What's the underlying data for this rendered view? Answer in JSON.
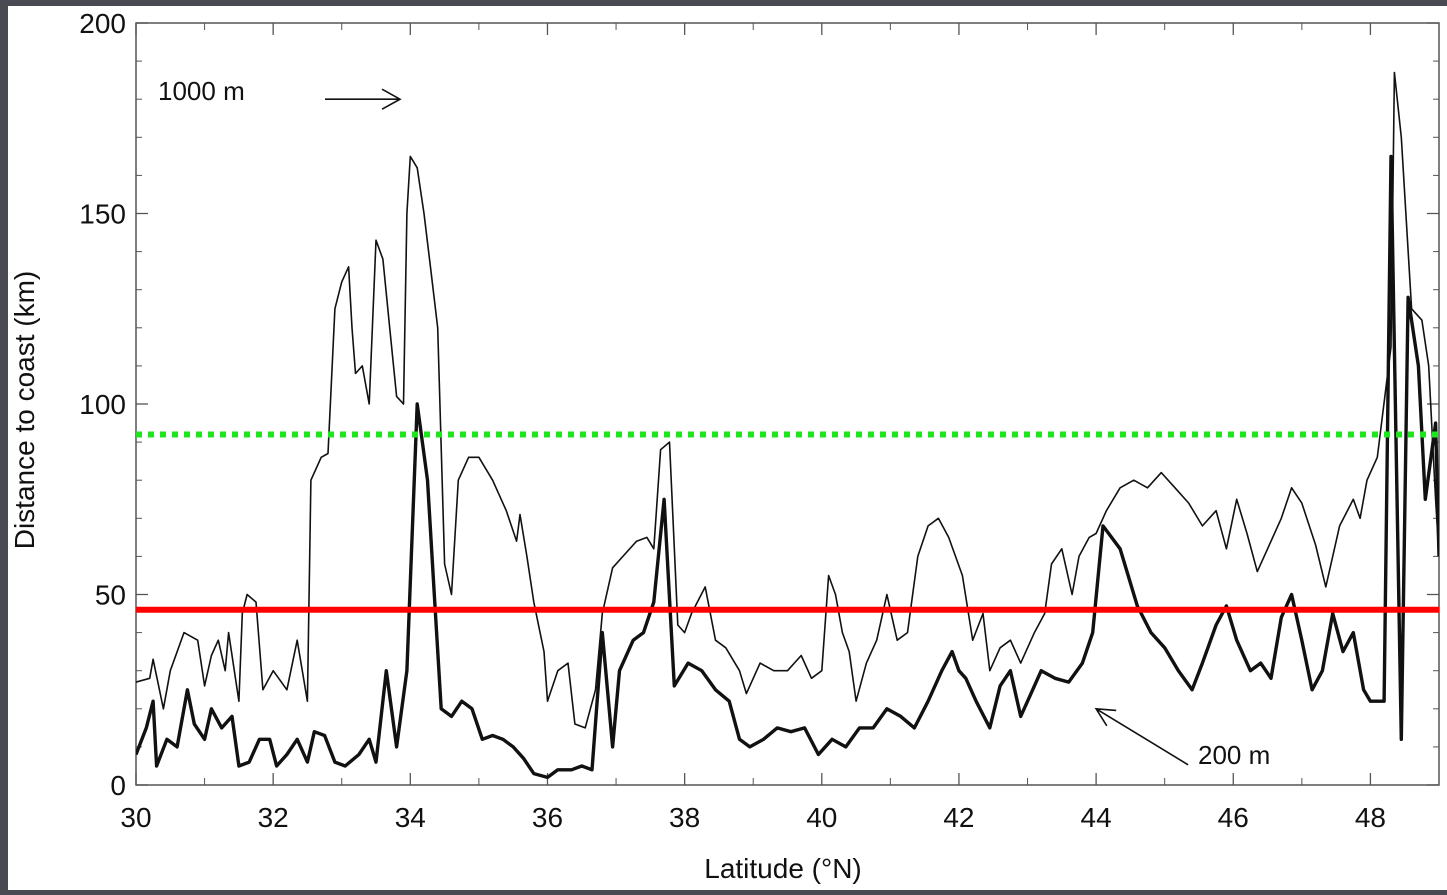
{
  "chart_data": {
    "type": "line",
    "xlabel": "Latitude (°N)",
    "ylabel": "Distance to coast (km)",
    "xlim": [
      30,
      49
    ],
    "ylim": [
      0,
      200
    ],
    "x_ticks": [
      "30",
      "32",
      "34",
      "36",
      "38",
      "40",
      "42",
      "44",
      "46",
      "48"
    ],
    "y_ticks": [
      "0",
      "50",
      "100",
      "150",
      "200"
    ],
    "grid": false,
    "annotations": [
      {
        "text": "1000 m",
        "arrow_tip": [
          33.85,
          180
        ]
      },
      {
        "text": "200 m",
        "arrow_tip": [
          44.0,
          20
        ]
      }
    ],
    "reference_lines": [
      {
        "y": 46,
        "color": "#ff0000",
        "style": "solid"
      },
      {
        "y": 92,
        "color": "#1ee61e",
        "style": "dotted"
      }
    ],
    "series": [
      {
        "name": "1000 m",
        "color": "#111111",
        "points": [
          [
            30.0,
            27
          ],
          [
            30.2,
            28
          ],
          [
            30.25,
            33
          ],
          [
            30.4,
            20
          ],
          [
            30.5,
            30
          ],
          [
            30.7,
            40
          ],
          [
            30.9,
            38
          ],
          [
            31.0,
            26
          ],
          [
            31.1,
            34
          ],
          [
            31.2,
            38
          ],
          [
            31.3,
            30
          ],
          [
            31.35,
            40
          ],
          [
            31.5,
            22
          ],
          [
            31.55,
            45
          ],
          [
            31.62,
            50
          ],
          [
            31.75,
            48
          ],
          [
            31.85,
            25
          ],
          [
            32.0,
            30
          ],
          [
            32.2,
            25
          ],
          [
            32.35,
            38
          ],
          [
            32.5,
            22
          ],
          [
            32.55,
            80
          ],
          [
            32.7,
            86
          ],
          [
            32.8,
            87
          ],
          [
            32.9,
            125
          ],
          [
            33.0,
            132
          ],
          [
            33.1,
            136
          ],
          [
            33.15,
            120
          ],
          [
            33.2,
            108
          ],
          [
            33.3,
            110
          ],
          [
            33.4,
            100
          ],
          [
            33.5,
            143
          ],
          [
            33.6,
            138
          ],
          [
            33.7,
            120
          ],
          [
            33.8,
            102
          ],
          [
            33.9,
            100
          ],
          [
            33.95,
            150
          ],
          [
            34.0,
            165
          ],
          [
            34.1,
            162
          ],
          [
            34.2,
            150
          ],
          [
            34.3,
            135
          ],
          [
            34.4,
            120
          ],
          [
            34.5,
            58
          ],
          [
            34.6,
            50
          ],
          [
            34.7,
            80
          ],
          [
            34.85,
            86
          ],
          [
            35.0,
            86
          ],
          [
            35.2,
            80
          ],
          [
            35.4,
            72
          ],
          [
            35.55,
            64
          ],
          [
            35.6,
            71
          ],
          [
            35.7,
            60
          ],
          [
            35.8,
            48
          ],
          [
            35.95,
            35
          ],
          [
            36.0,
            22
          ],
          [
            36.15,
            30
          ],
          [
            36.3,
            32
          ],
          [
            36.4,
            16
          ],
          [
            36.55,
            15
          ],
          [
            36.7,
            25
          ],
          [
            36.8,
            45
          ],
          [
            36.95,
            57
          ],
          [
            37.1,
            60
          ],
          [
            37.3,
            64
          ],
          [
            37.45,
            65
          ],
          [
            37.55,
            62
          ],
          [
            37.65,
            88
          ],
          [
            37.78,
            90
          ],
          [
            37.9,
            42
          ],
          [
            38.0,
            40
          ],
          [
            38.1,
            45
          ],
          [
            38.3,
            52
          ],
          [
            38.45,
            38
          ],
          [
            38.6,
            36
          ],
          [
            38.8,
            30
          ],
          [
            38.9,
            24
          ],
          [
            39.1,
            32
          ],
          [
            39.3,
            30
          ],
          [
            39.5,
            30
          ],
          [
            39.7,
            34
          ],
          [
            39.85,
            28
          ],
          [
            40.0,
            30
          ],
          [
            40.1,
            55
          ],
          [
            40.2,
            50
          ],
          [
            40.3,
            40
          ],
          [
            40.4,
            35
          ],
          [
            40.5,
            22
          ],
          [
            40.65,
            32
          ],
          [
            40.8,
            38
          ],
          [
            40.95,
            50
          ],
          [
            41.1,
            38
          ],
          [
            41.25,
            40
          ],
          [
            41.4,
            60
          ],
          [
            41.55,
            68
          ],
          [
            41.7,
            70
          ],
          [
            41.85,
            65
          ],
          [
            42.05,
            55
          ],
          [
            42.2,
            38
          ],
          [
            42.35,
            45
          ],
          [
            42.45,
            30
          ],
          [
            42.6,
            36
          ],
          [
            42.75,
            38
          ],
          [
            42.9,
            32
          ],
          [
            43.1,
            40
          ],
          [
            43.25,
            45
          ],
          [
            43.35,
            58
          ],
          [
            43.5,
            62
          ],
          [
            43.65,
            50
          ],
          [
            43.75,
            60
          ],
          [
            43.9,
            65
          ],
          [
            44.0,
            66
          ],
          [
            44.15,
            72
          ],
          [
            44.35,
            78
          ],
          [
            44.55,
            80
          ],
          [
            44.75,
            78
          ],
          [
            44.95,
            82
          ],
          [
            45.15,
            78
          ],
          [
            45.35,
            74
          ],
          [
            45.55,
            68
          ],
          [
            45.75,
            72
          ],
          [
            45.9,
            62
          ],
          [
            46.05,
            75
          ],
          [
            46.2,
            66
          ],
          [
            46.35,
            56
          ],
          [
            46.5,
            62
          ],
          [
            46.7,
            70
          ],
          [
            46.85,
            78
          ],
          [
            47.0,
            74
          ],
          [
            47.2,
            63
          ],
          [
            47.35,
            52
          ],
          [
            47.55,
            68
          ],
          [
            47.75,
            75
          ],
          [
            47.85,
            70
          ],
          [
            47.95,
            80
          ],
          [
            48.1,
            86
          ],
          [
            48.3,
            115
          ],
          [
            48.35,
            187
          ],
          [
            48.45,
            170
          ],
          [
            48.6,
            125
          ],
          [
            48.75,
            122
          ],
          [
            48.85,
            110
          ],
          [
            48.95,
            75
          ],
          [
            49.0,
            60
          ]
        ]
      },
      {
        "name": "200 m",
        "color": "#111111",
        "points": [
          [
            30.0,
            8
          ],
          [
            30.15,
            15
          ],
          [
            30.25,
            22
          ],
          [
            30.3,
            5
          ],
          [
            30.45,
            12
          ],
          [
            30.6,
            10
          ],
          [
            30.75,
            25
          ],
          [
            30.85,
            16
          ],
          [
            31.0,
            12
          ],
          [
            31.1,
            20
          ],
          [
            31.25,
            15
          ],
          [
            31.4,
            18
          ],
          [
            31.5,
            5
          ],
          [
            31.65,
            6
          ],
          [
            31.8,
            12
          ],
          [
            31.95,
            12
          ],
          [
            32.05,
            5
          ],
          [
            32.2,
            8
          ],
          [
            32.35,
            12
          ],
          [
            32.5,
            6
          ],
          [
            32.6,
            14
          ],
          [
            32.75,
            13
          ],
          [
            32.9,
            6
          ],
          [
            33.05,
            5
          ],
          [
            33.25,
            8
          ],
          [
            33.4,
            12
          ],
          [
            33.5,
            6
          ],
          [
            33.65,
            30
          ],
          [
            33.8,
            10
          ],
          [
            33.95,
            30
          ],
          [
            34.1,
            100
          ],
          [
            34.25,
            80
          ],
          [
            34.35,
            50
          ],
          [
            34.45,
            20
          ],
          [
            34.6,
            18
          ],
          [
            34.75,
            22
          ],
          [
            34.9,
            20
          ],
          [
            35.05,
            12
          ],
          [
            35.2,
            13
          ],
          [
            35.35,
            12
          ],
          [
            35.5,
            10
          ],
          [
            35.65,
            7
          ],
          [
            35.8,
            3
          ],
          [
            36.0,
            2
          ],
          [
            36.15,
            4
          ],
          [
            36.35,
            4
          ],
          [
            36.5,
            5
          ],
          [
            36.65,
            4
          ],
          [
            36.8,
            40
          ],
          [
            36.95,
            10
          ],
          [
            37.05,
            30
          ],
          [
            37.25,
            38
          ],
          [
            37.4,
            40
          ],
          [
            37.55,
            48
          ],
          [
            37.7,
            75
          ],
          [
            37.85,
            26
          ],
          [
            38.05,
            32
          ],
          [
            38.25,
            30
          ],
          [
            38.45,
            25
          ],
          [
            38.65,
            22
          ],
          [
            38.8,
            12
          ],
          [
            38.95,
            10
          ],
          [
            39.15,
            12
          ],
          [
            39.35,
            15
          ],
          [
            39.55,
            14
          ],
          [
            39.75,
            15
          ],
          [
            39.95,
            8
          ],
          [
            40.15,
            12
          ],
          [
            40.35,
            10
          ],
          [
            40.55,
            15
          ],
          [
            40.75,
            15
          ],
          [
            40.95,
            20
          ],
          [
            41.15,
            18
          ],
          [
            41.35,
            15
          ],
          [
            41.55,
            22
          ],
          [
            41.75,
            30
          ],
          [
            41.9,
            35
          ],
          [
            42.0,
            30
          ],
          [
            42.1,
            28
          ],
          [
            42.25,
            22
          ],
          [
            42.45,
            15
          ],
          [
            42.6,
            26
          ],
          [
            42.75,
            30
          ],
          [
            42.9,
            18
          ],
          [
            43.05,
            24
          ],
          [
            43.2,
            30
          ],
          [
            43.4,
            28
          ],
          [
            43.6,
            27
          ],
          [
            43.8,
            32
          ],
          [
            43.95,
            40
          ],
          [
            44.1,
            68
          ],
          [
            44.35,
            62
          ],
          [
            44.6,
            47
          ],
          [
            44.8,
            40
          ],
          [
            45.0,
            36
          ],
          [
            45.2,
            30
          ],
          [
            45.4,
            25
          ],
          [
            45.55,
            32
          ],
          [
            45.75,
            42
          ],
          [
            45.9,
            47
          ],
          [
            46.05,
            38
          ],
          [
            46.25,
            30
          ],
          [
            46.4,
            32
          ],
          [
            46.55,
            28
          ],
          [
            46.7,
            44
          ],
          [
            46.85,
            50
          ],
          [
            47.0,
            38
          ],
          [
            47.15,
            25
          ],
          [
            47.3,
            30
          ],
          [
            47.45,
            45
          ],
          [
            47.6,
            35
          ],
          [
            47.75,
            40
          ],
          [
            47.9,
            25
          ],
          [
            48.0,
            22
          ],
          [
            48.2,
            22
          ],
          [
            48.3,
            165
          ],
          [
            48.45,
            12
          ],
          [
            48.55,
            128
          ],
          [
            48.7,
            110
          ],
          [
            48.8,
            75
          ],
          [
            48.95,
            95
          ],
          [
            49.0,
            60
          ]
        ]
      }
    ]
  }
}
